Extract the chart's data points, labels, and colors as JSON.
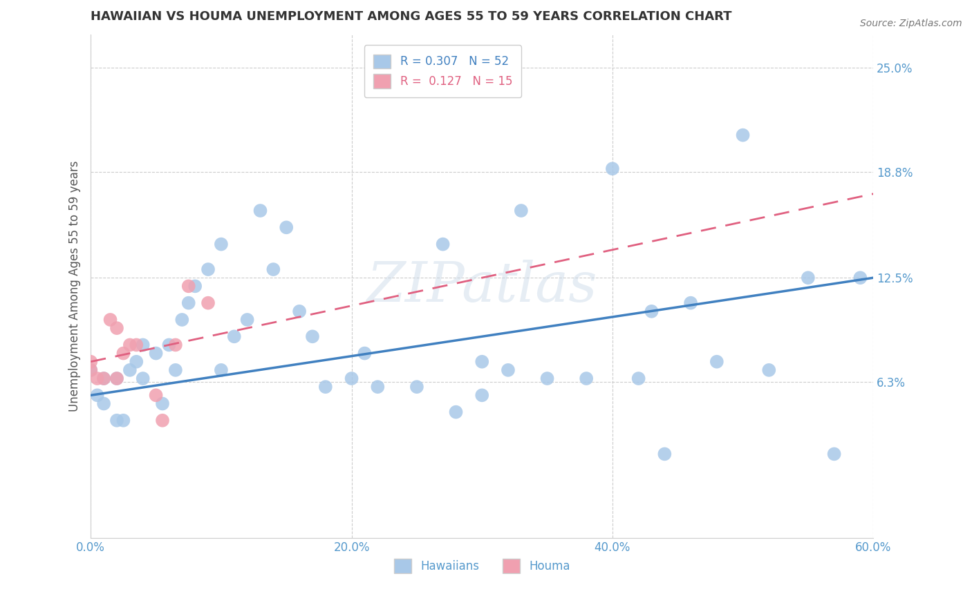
{
  "title": "HAWAIIAN VS HOUMA UNEMPLOYMENT AMONG AGES 55 TO 59 YEARS CORRELATION CHART",
  "source": "Source: ZipAtlas.com",
  "xlabel": "",
  "ylabel": "Unemployment Among Ages 55 to 59 years",
  "xlim": [
    0.0,
    0.6
  ],
  "ylim": [
    -0.03,
    0.27
  ],
  "xtick_labels": [
    "0.0%",
    "20.0%",
    "40.0%",
    "60.0%"
  ],
  "xtick_values": [
    0.0,
    0.2,
    0.4,
    0.6
  ],
  "ytick_labels": [
    "6.3%",
    "12.5%",
    "18.8%",
    "25.0%"
  ],
  "ytick_values": [
    0.063,
    0.125,
    0.188,
    0.25
  ],
  "watermark": "ZIPatlas",
  "hawaiians_R": 0.307,
  "hawaiians_N": 52,
  "houma_R": 0.127,
  "houma_N": 15,
  "hawaiians_color": "#a8c8e8",
  "houma_color": "#f0a0b0",
  "trend_hawaiians_color": "#4080c0",
  "trend_houma_color": "#e06080",
  "hawaiians_trend_x0": 0.0,
  "hawaiians_trend_y0": 0.055,
  "hawaiians_trend_x1": 0.6,
  "hawaiians_trend_y1": 0.125,
  "houma_trend_x0": 0.0,
  "houma_trend_y0": 0.075,
  "houma_trend_x1": 0.6,
  "houma_trend_y1": 0.175,
  "hawaiians_x": [
    0.0,
    0.005,
    0.01,
    0.01,
    0.02,
    0.02,
    0.025,
    0.03,
    0.035,
    0.04,
    0.04,
    0.05,
    0.055,
    0.06,
    0.065,
    0.07,
    0.075,
    0.08,
    0.09,
    0.1,
    0.1,
    0.11,
    0.12,
    0.13,
    0.14,
    0.15,
    0.16,
    0.17,
    0.18,
    0.2,
    0.21,
    0.22,
    0.25,
    0.27,
    0.28,
    0.3,
    0.3,
    0.32,
    0.33,
    0.35,
    0.38,
    0.4,
    0.42,
    0.43,
    0.44,
    0.46,
    0.48,
    0.5,
    0.52,
    0.55,
    0.57,
    0.59
  ],
  "hawaiians_y": [
    0.07,
    0.055,
    0.05,
    0.065,
    0.065,
    0.04,
    0.04,
    0.07,
    0.075,
    0.065,
    0.085,
    0.08,
    0.05,
    0.085,
    0.07,
    0.1,
    0.11,
    0.12,
    0.13,
    0.145,
    0.07,
    0.09,
    0.1,
    0.165,
    0.13,
    0.155,
    0.105,
    0.09,
    0.06,
    0.065,
    0.08,
    0.06,
    0.06,
    0.145,
    0.045,
    0.055,
    0.075,
    0.07,
    0.165,
    0.065,
    0.065,
    0.19,
    0.065,
    0.105,
    0.02,
    0.11,
    0.075,
    0.21,
    0.07,
    0.125,
    0.02,
    0.125
  ],
  "houma_x": [
    0.0,
    0.0,
    0.005,
    0.01,
    0.015,
    0.02,
    0.02,
    0.025,
    0.03,
    0.035,
    0.05,
    0.055,
    0.065,
    0.075,
    0.09
  ],
  "houma_y": [
    0.075,
    0.07,
    0.065,
    0.065,
    0.1,
    0.095,
    0.065,
    0.08,
    0.085,
    0.085,
    0.055,
    0.04,
    0.085,
    0.12,
    0.11
  ]
}
